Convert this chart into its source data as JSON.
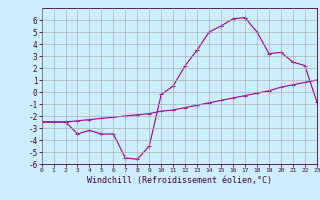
{
  "background_color": "#cceeff",
  "line_color": "#990099",
  "grid_color": "#aaaaaa",
  "xlabel": "Windchill (Refroidissement éolien,°C)",
  "xlim": [
    0,
    23
  ],
  "ylim": [
    -6,
    7
  ],
  "xticks": [
    0,
    1,
    2,
    3,
    4,
    5,
    6,
    7,
    8,
    9,
    10,
    11,
    12,
    13,
    14,
    15,
    16,
    17,
    18,
    19,
    20,
    21,
    22,
    23
  ],
  "yticks": [
    -6,
    -5,
    -4,
    -3,
    -2,
    -1,
    0,
    1,
    2,
    3,
    4,
    5,
    6
  ],
  "line1_x": [
    0,
    1,
    2,
    3,
    4,
    5,
    6,
    7,
    8,
    9,
    10,
    11,
    12,
    13,
    14,
    15,
    16,
    17,
    18,
    19,
    20,
    21,
    22,
    23
  ],
  "line1_y": [
    -2.5,
    -2.5,
    -2.5,
    -3.5,
    -3.2,
    -3.5,
    -3.5,
    -5.5,
    -5.6,
    -4.5,
    -0.2,
    0.5,
    2.2,
    3.5,
    5.0,
    5.5,
    6.1,
    6.2,
    5.0,
    3.2,
    3.3,
    2.5,
    2.2,
    -0.8
  ],
  "line2_x": [
    0,
    1,
    2,
    3,
    4,
    5,
    6,
    7,
    8,
    9,
    10,
    11,
    12,
    13,
    14,
    15,
    16,
    17,
    18,
    19,
    20,
    21,
    22,
    23
  ],
  "line2_y": [
    -2.5,
    -2.5,
    -2.5,
    -2.4,
    -2.3,
    -2.2,
    -2.1,
    -2.0,
    -1.9,
    -1.8,
    -1.6,
    -1.5,
    -1.3,
    -1.1,
    -0.9,
    -0.7,
    -0.5,
    -0.3,
    -0.1,
    0.1,
    0.4,
    0.6,
    0.8,
    1.0
  ]
}
